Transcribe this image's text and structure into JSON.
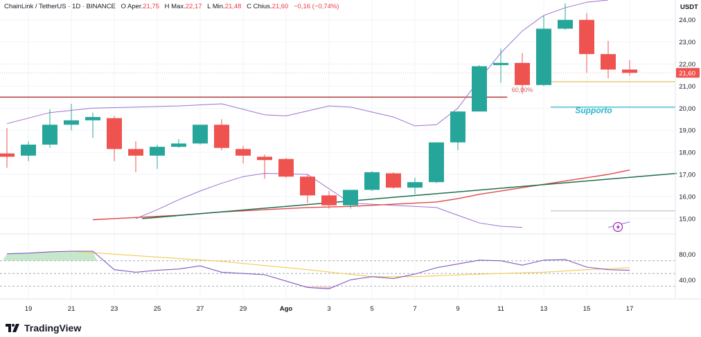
{
  "legend": {
    "symbol": "ChainLink / TetherUS · 1D · BINANCE",
    "open_label": "O",
    "open_text": "Aper.",
    "open": "21,75",
    "high_label": "H",
    "high_text": "Max.",
    "high": "22,17",
    "low_label": "L",
    "low_text": "Min.",
    "low": "21,48",
    "close_label": "C",
    "close_text": "Chius.",
    "close": "21,60",
    "change": "−0,16 (−0,74%)"
  },
  "brand": "TradingView",
  "colors": {
    "up": "#26a69a",
    "down": "#ef5350",
    "bollinger": "#9c6fcf",
    "ma_red": "#e04848",
    "trendline": "#1e6e4a",
    "resistance": "#b33a3a",
    "support_label": "#26b5c7",
    "level_yellow": "#d9b84a",
    "rsi_line": "#7e57c2",
    "rsi_signal": "#f2c94c"
  },
  "chart_data": {
    "type": "candlestick",
    "unit": "USDT",
    "price_axis_ticks": [
      "24,00",
      "23,00",
      "22,00",
      "21,00",
      "20,00",
      "19,00",
      "18,00",
      "17,00",
      "16,00",
      "15,00"
    ],
    "price_axis_values": [
      24,
      23,
      22,
      21,
      20,
      19,
      18,
      17,
      16,
      15
    ],
    "current_price_label": "21,60",
    "ylim": [
      14.4,
      24.9
    ],
    "x_ticks": [
      "19",
      "21",
      "23",
      "25",
      "27",
      "29",
      "Ago",
      "3",
      "5",
      "7",
      "9",
      "11",
      "13",
      "15",
      "17"
    ],
    "x_tick_index": [
      1,
      3,
      5,
      7,
      9,
      11,
      13,
      15,
      17,
      19,
      21,
      23,
      25,
      27,
      29
    ],
    "candles": [
      {
        "i": 0,
        "o": 17.95,
        "h": 19.1,
        "l": 17.3,
        "c": 17.8
      },
      {
        "i": 1,
        "o": 17.85,
        "h": 18.5,
        "l": 17.6,
        "c": 18.35
      },
      {
        "i": 2,
        "o": 18.35,
        "h": 19.95,
        "l": 18.2,
        "c": 19.25
      },
      {
        "i": 3,
        "o": 19.25,
        "h": 20.2,
        "l": 19.0,
        "c": 19.45
      },
      {
        "i": 4,
        "o": 19.45,
        "h": 19.8,
        "l": 18.65,
        "c": 19.6
      },
      {
        "i": 5,
        "o": 19.55,
        "h": 19.65,
        "l": 17.6,
        "c": 18.15
      },
      {
        "i": 6,
        "o": 18.15,
        "h": 18.5,
        "l": 17.1,
        "c": 17.85
      },
      {
        "i": 7,
        "o": 17.85,
        "h": 18.35,
        "l": 17.25,
        "c": 18.25
      },
      {
        "i": 8,
        "o": 18.25,
        "h": 18.6,
        "l": 18.2,
        "c": 18.4
      },
      {
        "i": 9,
        "o": 18.4,
        "h": 19.25,
        "l": 18.35,
        "c": 19.25
      },
      {
        "i": 10,
        "o": 19.25,
        "h": 19.5,
        "l": 18.1,
        "c": 18.2
      },
      {
        "i": 11,
        "o": 18.15,
        "h": 18.3,
        "l": 17.5,
        "c": 17.85
      },
      {
        "i": 12,
        "o": 17.8,
        "h": 17.9,
        "l": 16.8,
        "c": 17.65
      },
      {
        "i": 13,
        "o": 17.7,
        "h": 17.75,
        "l": 16.85,
        "c": 16.9
      },
      {
        "i": 14,
        "o": 16.9,
        "h": 17.0,
        "l": 15.7,
        "c": 16.05
      },
      {
        "i": 15,
        "o": 16.05,
        "h": 16.25,
        "l": 15.45,
        "c": 15.6
      },
      {
        "i": 16,
        "o": 15.6,
        "h": 16.3,
        "l": 15.45,
        "c": 16.3
      },
      {
        "i": 17,
        "o": 16.3,
        "h": 17.15,
        "l": 16.25,
        "c": 17.1
      },
      {
        "i": 18,
        "o": 17.05,
        "h": 17.1,
        "l": 16.35,
        "c": 16.4
      },
      {
        "i": 19,
        "o": 16.4,
        "h": 16.85,
        "l": 16.1,
        "c": 16.65
      },
      {
        "i": 20,
        "o": 16.65,
        "h": 18.45,
        "l": 16.6,
        "c": 18.45
      },
      {
        "i": 21,
        "o": 18.45,
        "h": 19.85,
        "l": 18.1,
        "c": 19.85
      },
      {
        "i": 22,
        "o": 19.85,
        "h": 21.95,
        "l": 19.85,
        "c": 21.9
      },
      {
        "i": 23,
        "o": 21.95,
        "h": 22.7,
        "l": 21.15,
        "c": 22.05
      },
      {
        "i": 24,
        "o": 22.05,
        "h": 22.5,
        "l": 20.65,
        "c": 21.05
      },
      {
        "i": 25,
        "o": 21.05,
        "h": 24.2,
        "l": 21.0,
        "c": 23.6
      },
      {
        "i": 26,
        "o": 23.6,
        "h": 24.75,
        "l": 23.55,
        "c": 24.0
      },
      {
        "i": 27,
        "o": 24.0,
        "h": 24.3,
        "l": 21.6,
        "c": 22.45
      },
      {
        "i": 28,
        "o": 22.45,
        "h": 23.05,
        "l": 21.35,
        "c": 21.75
      },
      {
        "i": 29,
        "o": 21.75,
        "h": 22.17,
        "l": 21.48,
        "c": 21.6
      }
    ],
    "bollinger_upper": [
      [
        0,
        19.3
      ],
      [
        2,
        19.8
      ],
      [
        4,
        20.0
      ],
      [
        6,
        20.05
      ],
      [
        8,
        20.1
      ],
      [
        10,
        20.2
      ],
      [
        12,
        19.7
      ],
      [
        13,
        19.65
      ],
      [
        15,
        20.1
      ],
      [
        16,
        20.05
      ],
      [
        18,
        19.6
      ],
      [
        19,
        19.2
      ],
      [
        20,
        19.25
      ],
      [
        21,
        20.0
      ],
      [
        22,
        21.3
      ],
      [
        23,
        22.5
      ],
      [
        24,
        23.5
      ],
      [
        25,
        24.2
      ],
      [
        26,
        24.55
      ],
      [
        27,
        24.8
      ],
      [
        28,
        24.9
      ]
    ],
    "bollinger_lower": [
      [
        6,
        15.0
      ],
      [
        7,
        15.4
      ],
      [
        8,
        15.85
      ],
      [
        9,
        16.25
      ],
      [
        10,
        16.6
      ],
      [
        11,
        16.9
      ],
      [
        12,
        17.05
      ],
      [
        14,
        17.0
      ],
      [
        16,
        15.7
      ],
      [
        18,
        15.6
      ],
      [
        19,
        15.55
      ],
      [
        20,
        15.5
      ],
      [
        21,
        15.15
      ],
      [
        22,
        14.8
      ],
      [
        23,
        14.65
      ],
      [
        24,
        14.6
      ]
    ],
    "bollinger_lower_tail": [
      [
        28,
        14.6
      ],
      [
        29,
        14.85
      ]
    ],
    "moving_average": [
      [
        4,
        14.95
      ],
      [
        6,
        15.05
      ],
      [
        8,
        15.15
      ],
      [
        10,
        15.3
      ],
      [
        12,
        15.4
      ],
      [
        14,
        15.5
      ],
      [
        16,
        15.55
      ],
      [
        18,
        15.65
      ],
      [
        20,
        15.75
      ],
      [
        21,
        15.9
      ],
      [
        22,
        16.1
      ],
      [
        24,
        16.4
      ],
      [
        26,
        16.7
      ],
      [
        28,
        17.0
      ],
      [
        29,
        17.2
      ]
    ],
    "trendline": [
      [
        6.3,
        15.0
      ],
      [
        31.2,
        17.05
      ]
    ],
    "resistance": {
      "price": 20.5,
      "from": 0,
      "to": 23.3
    },
    "support_level": {
      "price": 20.05,
      "from": 25,
      "to": 31,
      "label": "Supporto"
    },
    "fib_level": {
      "price": 21.2,
      "from": 25,
      "to": 31,
      "label": "60,00%"
    },
    "small_level": {
      "price": 15.35,
      "from": 25,
      "to": 31
    },
    "rsi": {
      "ylim": [
        10,
        110
      ],
      "ticks": [
        "80,00",
        "40,00"
      ],
      "tick_values": [
        80,
        40
      ],
      "bands": [
        30,
        50,
        70
      ],
      "line": [
        [
          0,
          81
        ],
        [
          1,
          82
        ],
        [
          2,
          84
        ],
        [
          3,
          85
        ],
        [
          4,
          85
        ],
        [
          5,
          56
        ],
        [
          6,
          52
        ],
        [
          7,
          55
        ],
        [
          8,
          57
        ],
        [
          9,
          62
        ],
        [
          10,
          52
        ],
        [
          11,
          50
        ],
        [
          12,
          48
        ],
        [
          13,
          38
        ],
        [
          14,
          28
        ],
        [
          15,
          26
        ],
        [
          16,
          40
        ],
        [
          17,
          45
        ],
        [
          18,
          42
        ],
        [
          19,
          49
        ],
        [
          20,
          59
        ],
        [
          21,
          65
        ],
        [
          22,
          71
        ],
        [
          23,
          70
        ],
        [
          24,
          63
        ],
        [
          25,
          71
        ],
        [
          26,
          72
        ],
        [
          27,
          60
        ],
        [
          28,
          56
        ],
        [
          29,
          55
        ]
      ],
      "signal": [
        [
          3,
          85
        ],
        [
          6,
          78
        ],
        [
          10,
          69
        ],
        [
          14,
          56
        ],
        [
          17,
          45
        ],
        [
          19,
          45
        ],
        [
          22,
          49
        ],
        [
          25,
          52
        ],
        [
          27,
          56
        ],
        [
          29,
          59
        ]
      ]
    }
  }
}
